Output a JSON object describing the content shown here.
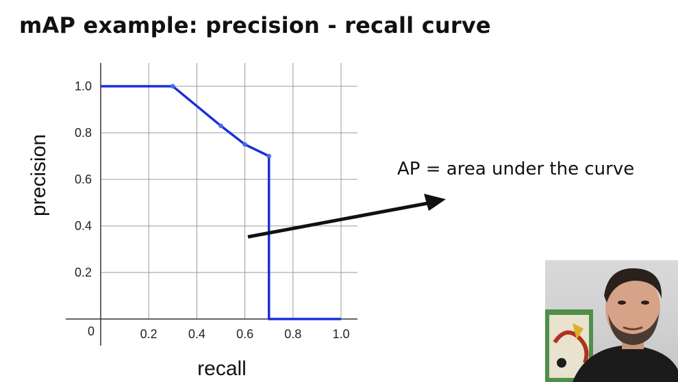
{
  "title": "mAP example: precision - recall curve",
  "annotation": "AP = area under the curve",
  "chart_data": {
    "type": "line",
    "xlabel": "recall",
    "ylabel": "precision",
    "xlim": [
      0,
      1.0
    ],
    "ylim": [
      0,
      1.0
    ],
    "grid": true,
    "x_ticks": [
      "0.2",
      "0.4",
      "0.6",
      "0.8",
      "1.0"
    ],
    "y_ticks": [
      "0.2",
      "0.4",
      "0.6",
      "0.8",
      "1.0"
    ],
    "origin_label": "0",
    "series": [
      {
        "color": "#1a2fd8",
        "x": [
          0.0,
          0.3,
          0.5,
          0.6,
          0.7,
          0.7,
          1.0
        ],
        "y": [
          1.0,
          1.0,
          0.83,
          0.75,
          0.7,
          0.0,
          0.0
        ]
      }
    ],
    "markers": [
      {
        "x": 0.3,
        "y": 1.0
      },
      {
        "x": 0.5,
        "y": 0.83
      },
      {
        "x": 0.6,
        "y": 0.75
      },
      {
        "x": 0.7,
        "y": 0.7
      }
    ]
  }
}
